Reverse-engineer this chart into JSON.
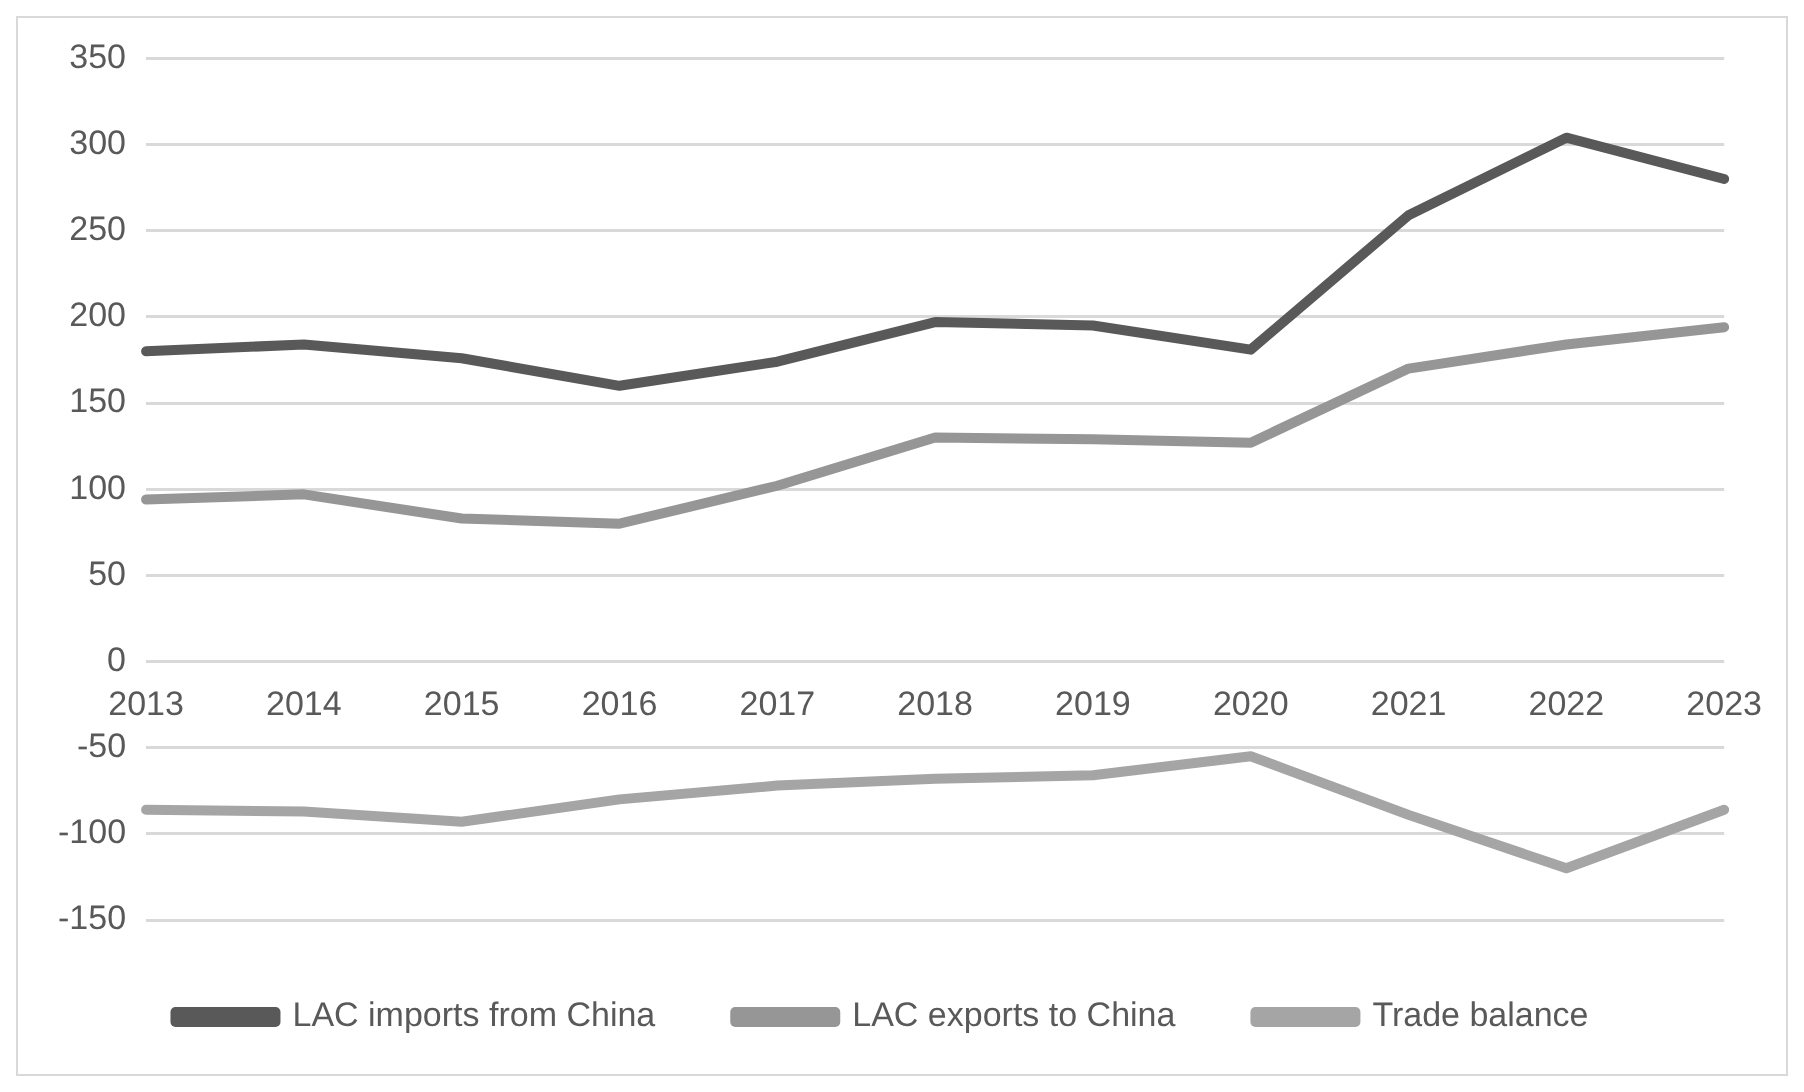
{
  "chart_data": {
    "type": "line",
    "categories": [
      "2013",
      "2014",
      "2015",
      "2016",
      "2017",
      "2018",
      "2019",
      "2020",
      "2021",
      "2022",
      "2023"
    ],
    "series": [
      {
        "name": "LAC imports from China",
        "color": "#595959",
        "values": [
          180,
          184,
          176,
          160,
          174,
          197,
          195,
          181,
          259,
          304,
          280
        ]
      },
      {
        "name": "LAC exports to China",
        "color": "#969696",
        "values": [
          94,
          97,
          83,
          80,
          102,
          130,
          129,
          127,
          170,
          184,
          194
        ]
      },
      {
        "name": "Trade balance",
        "color": "#a5a5a5",
        "values": [
          -86,
          -87,
          -93,
          -80,
          -72,
          -68,
          -66,
          -55,
          -89,
          -120,
          -86
        ]
      }
    ],
    "ylim": [
      -150,
      350
    ],
    "yticks": [
      -150,
      -100,
      -50,
      0,
      50,
      100,
      150,
      200,
      250,
      300,
      350
    ],
    "grid": "y",
    "legend": "bottom",
    "marker": "none",
    "line_style": "solid"
  }
}
